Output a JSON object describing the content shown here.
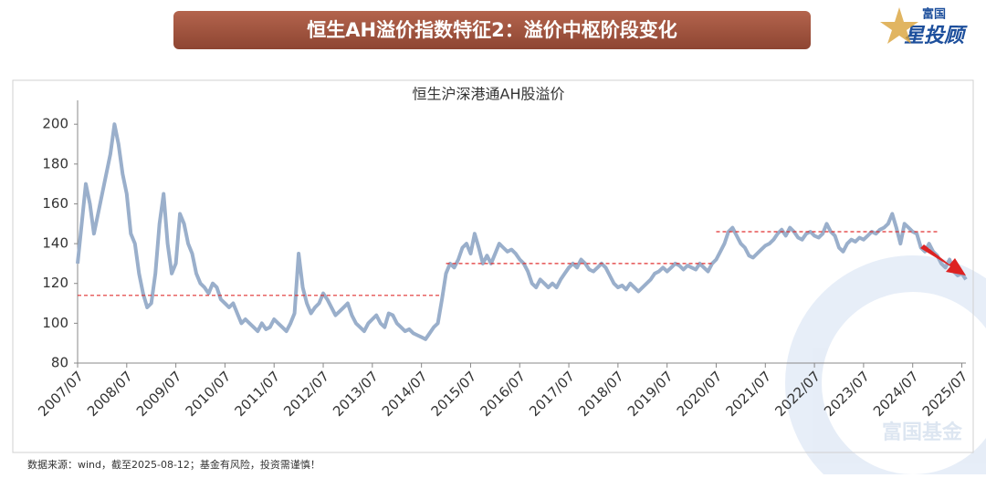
{
  "header": {
    "title": "恒生AH溢价指数特征2：溢价中枢阶段变化",
    "logo_top": "富国",
    "logo_main": "星投顾"
  },
  "chart_data": {
    "type": "line",
    "title": "恒生沪深港通AH股溢价",
    "x": [
      "2007/07",
      "2007/08",
      "2007/09",
      "2007/10",
      "2007/11",
      "2007/12",
      "2008/01",
      "2008/02",
      "2008/03",
      "2008/04",
      "2008/05",
      "2008/06",
      "2008/07",
      "2008/08",
      "2008/09",
      "2008/10",
      "2008/11",
      "2008/12",
      "2009/01",
      "2009/02",
      "2009/03",
      "2009/04",
      "2009/05",
      "2009/06",
      "2009/07",
      "2009/08",
      "2009/09",
      "2009/10",
      "2009/11",
      "2009/12",
      "2010/01",
      "2010/02",
      "2010/03",
      "2010/04",
      "2010/05",
      "2010/06",
      "2010/07",
      "2010/08",
      "2010/09",
      "2010/10",
      "2010/11",
      "2010/12",
      "2011/01",
      "2011/02",
      "2011/03",
      "2011/04",
      "2011/05",
      "2011/06",
      "2011/07",
      "2011/08",
      "2011/09",
      "2011/10",
      "2011/11",
      "2011/12",
      "2012/01",
      "2012/02",
      "2012/03",
      "2012/04",
      "2012/05",
      "2012/06",
      "2012/07",
      "2012/08",
      "2012/09",
      "2012/10",
      "2012/11",
      "2012/12",
      "2013/01",
      "2013/02",
      "2013/03",
      "2013/04",
      "2013/05",
      "2013/06",
      "2013/07",
      "2013/08",
      "2013/09",
      "2013/10",
      "2013/11",
      "2013/12",
      "2014/01",
      "2014/02",
      "2014/03",
      "2014/04",
      "2014/05",
      "2014/06",
      "2014/07",
      "2014/08",
      "2014/09",
      "2014/10",
      "2014/11",
      "2014/12",
      "2015/01",
      "2015/02",
      "2015/03",
      "2015/04",
      "2015/05",
      "2015/06",
      "2015/07",
      "2015/08",
      "2015/09",
      "2015/10",
      "2015/11",
      "2015/12",
      "2016/01",
      "2016/02",
      "2016/03",
      "2016/04",
      "2016/05",
      "2016/06",
      "2016/07",
      "2016/08",
      "2016/09",
      "2016/10",
      "2016/11",
      "2016/12",
      "2017/01",
      "2017/02",
      "2017/03",
      "2017/04",
      "2017/05",
      "2017/06",
      "2017/07",
      "2017/08",
      "2017/09",
      "2017/10",
      "2017/11",
      "2017/12",
      "2018/01",
      "2018/02",
      "2018/03",
      "2018/04",
      "2018/05",
      "2018/06",
      "2018/07",
      "2018/08",
      "2018/09",
      "2018/10",
      "2018/11",
      "2018/12",
      "2019/01",
      "2019/02",
      "2019/03",
      "2019/04",
      "2019/05",
      "2019/06",
      "2019/07",
      "2019/08",
      "2019/09",
      "2019/10",
      "2019/11",
      "2019/12",
      "2020/01",
      "2020/02",
      "2020/03",
      "2020/04",
      "2020/05",
      "2020/06",
      "2020/07",
      "2020/08",
      "2020/09",
      "2020/10",
      "2020/11",
      "2020/12",
      "2021/01",
      "2021/02",
      "2021/03",
      "2021/04",
      "2021/05",
      "2021/06",
      "2021/07",
      "2021/08",
      "2021/09",
      "2021/10",
      "2021/11",
      "2021/12",
      "2022/01",
      "2022/02",
      "2022/03",
      "2022/04",
      "2022/05",
      "2022/06",
      "2022/07",
      "2022/08",
      "2022/09",
      "2022/10",
      "2022/11",
      "2022/12",
      "2023/01",
      "2023/02",
      "2023/03",
      "2023/04",
      "2023/05",
      "2023/06",
      "2023/07",
      "2023/08",
      "2023/09",
      "2023/10",
      "2023/11",
      "2023/12",
      "2024/01",
      "2024/02",
      "2024/03",
      "2024/04",
      "2024/05",
      "2024/06",
      "2024/07",
      "2024/08",
      "2024/09",
      "2024/10",
      "2024/11",
      "2024/12",
      "2025/01",
      "2025/02",
      "2025/03",
      "2025/04",
      "2025/05",
      "2025/06",
      "2025/07",
      "2025/08"
    ],
    "series": [
      {
        "color": "#9aafcb",
        "values": [
          130,
          150,
          170,
          160,
          145,
          155,
          165,
          175,
          185,
          200,
          190,
          175,
          165,
          145,
          140,
          125,
          115,
          108,
          110,
          125,
          150,
          165,
          140,
          125,
          130,
          155,
          150,
          140,
          135,
          125,
          120,
          118,
          115,
          120,
          118,
          112,
          110,
          108,
          110,
          105,
          100,
          102,
          100,
          98,
          96,
          100,
          97,
          98,
          102,
          100,
          98,
          96,
          100,
          105,
          135,
          118,
          110,
          105,
          108,
          110,
          115,
          112,
          108,
          104,
          106,
          108,
          110,
          104,
          100,
          98,
          96,
          100,
          102,
          104,
          100,
          98,
          105,
          104,
          100,
          98,
          96,
          97,
          95,
          94,
          93,
          92,
          95,
          98,
          100,
          112,
          125,
          130,
          128,
          132,
          138,
          140,
          135,
          145,
          138,
          130,
          134,
          130,
          135,
          140,
          138,
          136,
          137,
          135,
          132,
          130,
          126,
          120,
          118,
          122,
          120,
          118,
          120,
          118,
          122,
          125,
          128,
          130,
          128,
          132,
          130,
          127,
          126,
          128,
          130,
          128,
          124,
          120,
          118,
          119,
          117,
          120,
          118,
          116,
          118,
          120,
          122,
          125,
          126,
          128,
          126,
          128,
          130,
          129,
          127,
          129,
          128,
          127,
          130,
          128,
          126,
          130,
          132,
          136,
          140,
          146,
          148,
          144,
          140,
          138,
          134,
          133,
          135,
          137,
          139,
          140,
          142,
          145,
          147,
          144,
          148,
          146,
          143,
          142,
          145,
          146,
          144,
          143,
          145,
          150,
          146,
          144,
          138,
          136,
          140,
          142,
          141,
          143,
          142,
          144,
          146,
          145,
          147,
          148,
          150,
          155,
          148,
          140,
          150,
          148,
          146,
          145,
          138,
          136,
          140,
          136,
          134,
          130,
          128,
          132,
          126,
          124,
          125,
          122
        ]
      }
    ],
    "ylim": [
      80,
      212
    ],
    "yticks": [
      80,
      100,
      120,
      140,
      160,
      180,
      200
    ],
    "xticks": [
      "2007/07",
      "2008/07",
      "2009/07",
      "2010/07",
      "2011/07",
      "2012/07",
      "2013/07",
      "2014/07",
      "2015/07",
      "2016/07",
      "2017/07",
      "2018/07",
      "2019/07",
      "2020/07",
      "2021/07",
      "2022/07",
      "2023/07",
      "2024/07",
      "2025/07"
    ],
    "reference_lines": [
      {
        "value": 114,
        "from": "2007/07",
        "to": "2014/12"
      },
      {
        "value": 130,
        "from": "2015/01",
        "to": "2020/06"
      },
      {
        "value": 146,
        "from": "2020/07",
        "to": "2025/01"
      }
    ],
    "reference_color": "#e03030"
  },
  "footer": {
    "source": "数据来源：wind，截至2025-08-12；基金有风险，投资需谨慎！",
    "watermark": "富国基金"
  }
}
